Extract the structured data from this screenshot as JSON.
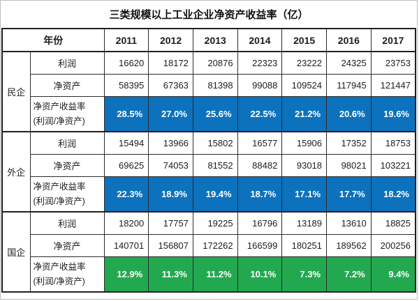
{
  "colors": {
    "highlight_blue": "#0d72be",
    "highlight_green": "#22a94f",
    "text_on_highlight": "#ffffff",
    "border": "#1f1f1f"
  },
  "chart_data": {
    "type": "table",
    "title": "三类规模以上工业企业净资产收益率（亿）",
    "year_header_label": "年份",
    "years": [
      "2011",
      "2012",
      "2013",
      "2014",
      "2015",
      "2016",
      "2017"
    ],
    "row_labels": {
      "profit": "利润",
      "net_assets": "净资产",
      "roe_line1": "净资产收益率",
      "roe_line2": "(利润/净资产)"
    },
    "groups": [
      {
        "name": "民企",
        "highlight": "blue",
        "profit": [
          "16620",
          "18172",
          "20876",
          "22323",
          "23222",
          "24325",
          "23753"
        ],
        "net_assets": [
          "58395",
          "67363",
          "81398",
          "99088",
          "109524",
          "117945",
          "121447"
        ],
        "roe": [
          "28.5%",
          "27.0%",
          "25.6%",
          "22.5%",
          "21.2%",
          "20.6%",
          "19.6%"
        ]
      },
      {
        "name": "外企",
        "highlight": "blue",
        "profit": [
          "15494",
          "13966",
          "15802",
          "16577",
          "15906",
          "17352",
          "18753"
        ],
        "net_assets": [
          "69625",
          "74053",
          "81552",
          "88482",
          "93018",
          "98021",
          "103221"
        ],
        "roe": [
          "22.3%",
          "18.9%",
          "19.4%",
          "18.7%",
          "17.1%",
          "17.7%",
          "18.2%"
        ]
      },
      {
        "name": "国企",
        "highlight": "green",
        "profit": [
          "18200",
          "17757",
          "19225",
          "16796",
          "13189",
          "13610",
          "18825"
        ],
        "net_assets": [
          "140701",
          "156807",
          "172262",
          "166599",
          "180251",
          "189562",
          "200256"
        ],
        "roe": [
          "12.9%",
          "11.3%",
          "11.2%",
          "10.1%",
          "7.3%",
          "7.2%",
          "9.4%"
        ]
      }
    ]
  }
}
